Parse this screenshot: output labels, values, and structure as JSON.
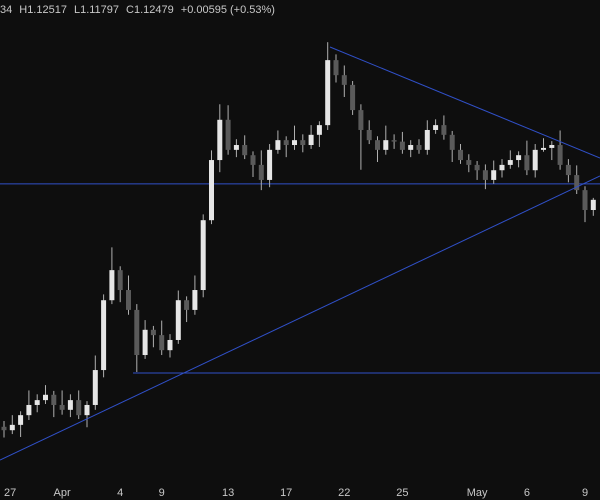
{
  "chart_data": {
    "type": "candlestick",
    "ohlc_label": [
      "34",
      "H1.12517",
      "L1.11797",
      "C1.12479",
      "+0.00595 (+0.53%)"
    ],
    "categories": [
      "27",
      null,
      null,
      null,
      null,
      null,
      null,
      "Apr",
      null,
      null,
      null,
      null,
      null,
      null,
      "4",
      null,
      null,
      null,
      null,
      "9",
      null,
      null,
      null,
      null,
      null,
      null,
      null,
      "13",
      null,
      null,
      null,
      null,
      null,
      null,
      "17",
      null,
      null,
      null,
      null,
      null,
      null,
      "22",
      null,
      null,
      null,
      null,
      null,
      null,
      "25",
      null,
      null,
      null,
      null,
      null,
      null,
      null,
      null,
      "May",
      null,
      null,
      null,
      null,
      null,
      "6",
      null,
      null,
      null,
      null,
      null,
      null,
      "9",
      null
    ],
    "open": [
      1.078,
      1.0773,
      1.0784,
      1.0804,
      1.0825,
      1.0835,
      1.0846,
      1.0825,
      1.0815,
      1.0835,
      1.0804,
      1.0825,
      1.0897,
      1.1041,
      1.1103,
      1.1062,
      1.1021,
      1.0928,
      1.098,
      1.0969,
      1.0938,
      1.0959,
      1.1041,
      1.1021,
      1.1062,
      1.1206,
      1.133,
      1.1413,
      1.1351,
      1.1361,
      1.134,
      1.132,
      1.1289,
      1.1351,
      1.1371,
      1.1361,
      1.1371,
      1.1361,
      1.1382,
      1.1402,
      1.1536,
      1.1505,
      1.1485,
      1.1433,
      1.1392,
      1.1371,
      1.1351,
      1.1371,
      1.1368,
      1.1351,
      1.1361,
      1.1351,
      1.1392,
      1.1402,
      1.1382,
      1.1351,
      1.133,
      1.132,
      1.1309,
      1.1289,
      1.1309,
      1.132,
      1.133,
      1.134,
      1.1309,
      1.1351,
      1.1355,
      1.1361,
      1.132,
      1.1299,
      1.1268,
      1.1227
    ],
    "high": [
      1.0792,
      1.0804,
      1.0812,
      1.0855,
      1.0847,
      1.0866,
      1.0854,
      1.0855,
      1.0847,
      1.0855,
      1.0833,
      1.0927,
      1.1053,
      1.115,
      1.1111,
      1.1092,
      1.1033,
      1.1,
      1.0988,
      1.0999,
      1.0971,
      1.1061,
      1.1049,
      1.1092,
      1.1218,
      1.135,
      1.1445,
      1.1443,
      1.1373,
      1.1381,
      1.1348,
      1.135,
      1.1363,
      1.1391,
      1.1379,
      1.1401,
      1.1383,
      1.1402,
      1.141,
      1.1573,
      1.1548,
      1.1525,
      1.1493,
      1.1445,
      1.1412,
      1.1379,
      1.1401,
      1.1383,
      1.1388,
      1.1371,
      1.1373,
      1.1412,
      1.1414,
      1.1422,
      1.139,
      1.1363,
      1.1342,
      1.1328,
      1.1321,
      1.1329,
      1.1332,
      1.135,
      1.1348,
      1.137,
      1.1363,
      1.1375,
      1.1369,
      1.1391,
      1.1332,
      1.1319,
      1.1276,
      1.1252
    ],
    "low": [
      1.0758,
      1.0765,
      1.0759,
      1.0794,
      1.081,
      1.0827,
      1.08,
      1.0805,
      1.08,
      1.0796,
      1.0779,
      1.0815,
      1.0882,
      1.1033,
      1.1037,
      1.1011,
      1.0893,
      1.092,
      1.0944,
      1.0928,
      1.0923,
      1.0951,
      1.0996,
      1.1011,
      1.1047,
      1.1198,
      1.1305,
      1.1341,
      1.1336,
      1.1332,
      1.1295,
      1.1268,
      1.1274,
      1.1343,
      1.1336,
      1.1351,
      1.1346,
      1.1353,
      1.1357,
      1.1392,
      1.149,
      1.146,
      1.1423,
      1.131,
      1.1363,
      1.1326,
      1.1341,
      1.1353,
      1.1343,
      1.1336,
      1.1343,
      1.1341,
      1.1384,
      1.1372,
      1.1326,
      1.1322,
      1.1305,
      1.1289,
      1.127,
      1.1281,
      1.1294,
      1.1312,
      1.1315,
      1.1299,
      1.1294,
      1.1347,
      1.133,
      1.131,
      1.1284,
      1.126,
      1.1202,
      1.1215
    ],
    "close": [
      1.0773,
      1.0784,
      1.0804,
      1.0825,
      1.0835,
      1.0846,
      1.0825,
      1.0815,
      1.0835,
      1.0804,
      1.0825,
      1.0897,
      1.1041,
      1.1103,
      1.1062,
      1.1021,
      1.0928,
      1.098,
      1.0969,
      1.0938,
      1.0959,
      1.1041,
      1.1021,
      1.1062,
      1.1206,
      1.133,
      1.1413,
      1.1351,
      1.1361,
      1.134,
      1.132,
      1.1289,
      1.1351,
      1.1371,
      1.1361,
      1.1371,
      1.1361,
      1.1382,
      1.1402,
      1.1536,
      1.1505,
      1.1485,
      1.1433,
      1.1392,
      1.1371,
      1.1351,
      1.1371,
      1.1368,
      1.1351,
      1.1361,
      1.1351,
      1.1392,
      1.1402,
      1.1382,
      1.1351,
      1.133,
      1.132,
      1.1309,
      1.1289,
      1.1309,
      1.132,
      1.133,
      1.134,
      1.1309,
      1.1351,
      1.1355,
      1.1361,
      1.132,
      1.1299,
      1.1268,
      1.1227,
      1.1248
    ],
    "levels": [
      1.1281,
      1.0891
    ],
    "ylim": [
      1.066,
      1.166
    ],
    "up_color": "#e6e6e6",
    "down_color": "#5a5a5a",
    "wick_color": "#b0b0b0",
    "line_color": "#3050c8"
  }
}
